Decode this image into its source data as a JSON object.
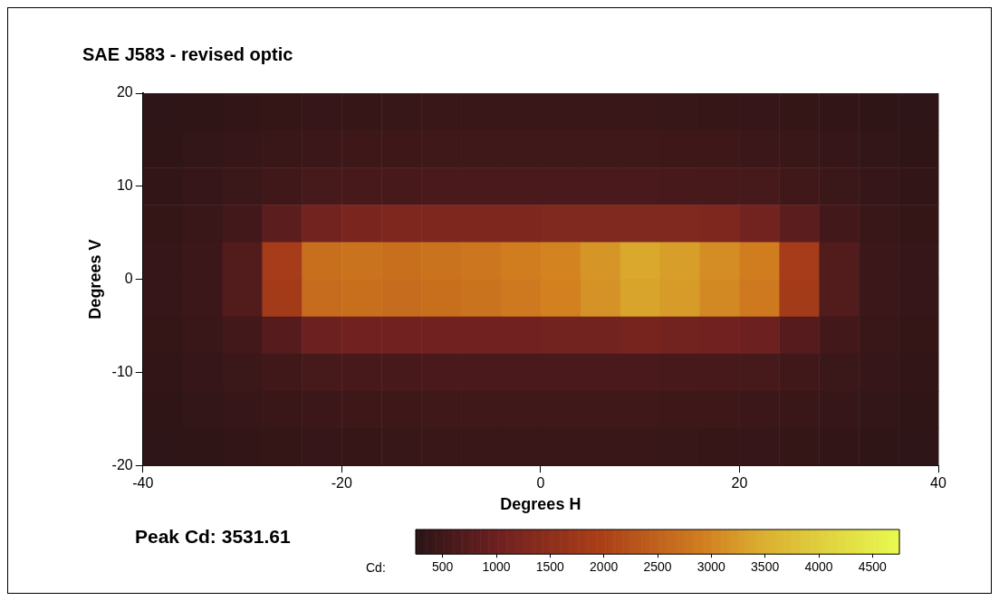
{
  "chart_data": {
    "type": "heatmap",
    "title": "SAE J583 - revised optic",
    "xlabel": "Degrees H",
    "ylabel": "Degrees V",
    "clabel": "Cd:",
    "annotations": [
      "Peak Cd: 3531.61"
    ],
    "x": [
      -38,
      -34,
      -30,
      -26,
      -22,
      -18,
      -14,
      -10,
      -6,
      -2,
      2,
      6,
      10,
      14,
      18,
      22,
      26,
      30,
      34,
      38
    ],
    "cells": [
      [
        300,
        320,
        340,
        360,
        380,
        400,
        410,
        420,
        420,
        420,
        420,
        420,
        420,
        410,
        400,
        380,
        360,
        340,
        320,
        300
      ],
      [
        320,
        350,
        380,
        420,
        450,
        470,
        480,
        490,
        490,
        490,
        490,
        490,
        490,
        480,
        470,
        450,
        420,
        380,
        350,
        320
      ],
      [
        340,
        380,
        430,
        500,
        560,
        580,
        590,
        600,
        600,
        600,
        600,
        600,
        600,
        590,
        580,
        560,
        500,
        430,
        380,
        340
      ],
      [
        360,
        420,
        520,
        800,
        1100,
        1200,
        1250,
        1250,
        1250,
        1250,
        1300,
        1300,
        1300,
        1300,
        1250,
        1100,
        800,
        520,
        420,
        360
      ],
      [
        380,
        450,
        700,
        1900,
        2700,
        2750,
        2700,
        2750,
        2800,
        2900,
        3000,
        3200,
        3400,
        3300,
        3100,
        2900,
        1900,
        700,
        450,
        380
      ],
      [
        380,
        450,
        700,
        1850,
        2650,
        2700,
        2650,
        2700,
        2750,
        2850,
        2950,
        3150,
        3350,
        3250,
        3050,
        2850,
        1850,
        700,
        450,
        380
      ],
      [
        360,
        420,
        520,
        750,
        1000,
        1050,
        1050,
        1050,
        1050,
        1050,
        1100,
        1100,
        1150,
        1100,
        1050,
        1000,
        750,
        520,
        420,
        360
      ],
      [
        340,
        380,
        430,
        500,
        560,
        580,
        590,
        600,
        600,
        600,
        600,
        600,
        600,
        590,
        580,
        560,
        500,
        430,
        380,
        340
      ],
      [
        320,
        350,
        380,
        420,
        450,
        470,
        480,
        490,
        490,
        490,
        490,
        490,
        490,
        480,
        470,
        450,
        420,
        380,
        350,
        320
      ],
      [
        300,
        320,
        340,
        360,
        380,
        400,
        410,
        420,
        420,
        420,
        420,
        420,
        420,
        410,
        400,
        380,
        360,
        340,
        320,
        300
      ]
    ],
    "xlim": [
      -40,
      40
    ],
    "xticks": [
      -40,
      -20,
      0,
      20,
      40
    ],
    "ylim": [
      -20,
      20
    ],
    "yticks": [
      -20,
      -10,
      0,
      10,
      20
    ],
    "clim": [
      250,
      4750
    ],
    "cticks": [
      500,
      1000,
      1500,
      2000,
      2500,
      3000,
      3500,
      4000,
      4500
    ],
    "grid": false
  }
}
